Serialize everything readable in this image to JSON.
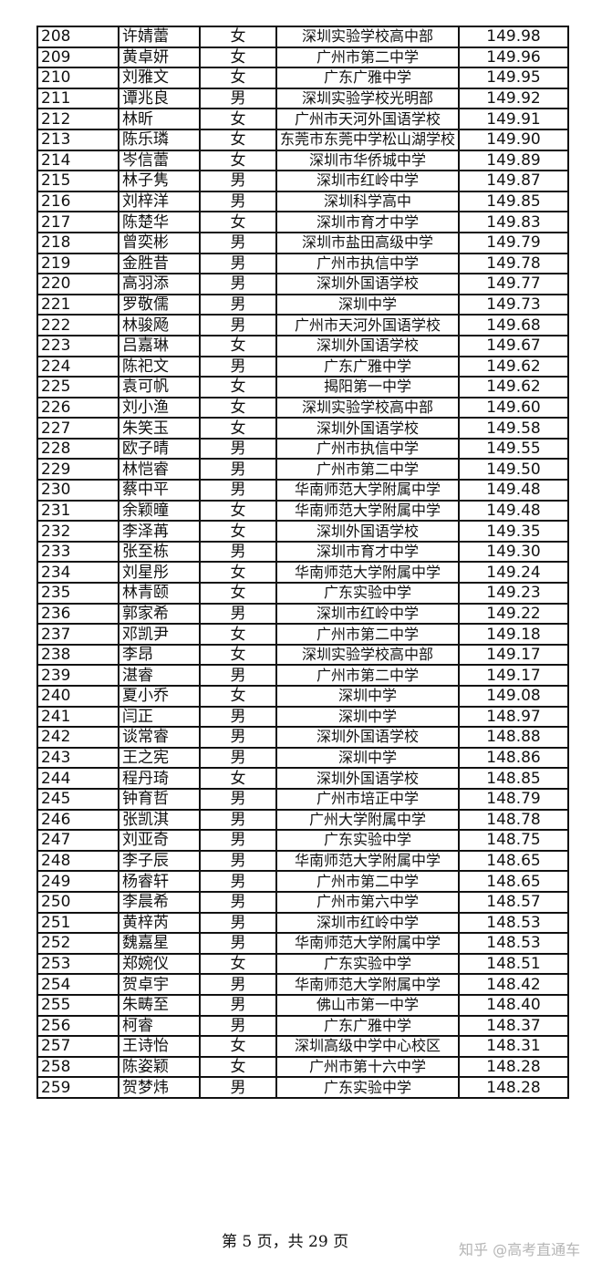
{
  "table": {
    "rows": [
      [
        "208",
        "许婧蕾",
        "女",
        "深圳实验学校高中部",
        "149.98"
      ],
      [
        "209",
        "黄卓妍",
        "女",
        "广州市第二中学",
        "149.96"
      ],
      [
        "210",
        "刘雅文",
        "女",
        "广东广雅中学",
        "149.95"
      ],
      [
        "211",
        "谭兆良",
        "男",
        "深圳实验学校光明部",
        "149.92"
      ],
      [
        "212",
        "林昕",
        "女",
        "广州市天河外国语学校",
        "149.91"
      ],
      [
        "213",
        "陈乐璘",
        "女",
        "东莞市东莞中学松山湖学校",
        "149.90"
      ],
      [
        "214",
        "岑信蕾",
        "女",
        "深圳市华侨城中学",
        "149.89"
      ],
      [
        "215",
        "林子隽",
        "男",
        "深圳市红岭中学",
        "149.87"
      ],
      [
        "216",
        "刘梓洋",
        "男",
        "深圳科学高中",
        "149.85"
      ],
      [
        "217",
        "陈楚华",
        "女",
        "深圳市育才中学",
        "149.83"
      ],
      [
        "218",
        "曾奕彬",
        "男",
        "深圳市盐田高级中学",
        "149.79"
      ],
      [
        "219",
        "金胜昔",
        "男",
        "广州市执信中学",
        "149.78"
      ],
      [
        "220",
        "高羽添",
        "男",
        "深圳外国语学校",
        "149.77"
      ],
      [
        "221",
        "罗敬儒",
        "男",
        "深圳中学",
        "149.73"
      ],
      [
        "222",
        "林骏飏",
        "男",
        "广州市天河外国语学校",
        "149.68"
      ],
      [
        "223",
        "吕嘉琳",
        "女",
        "深圳外国语学校",
        "149.67"
      ],
      [
        "224",
        "陈祀文",
        "男",
        "广东广雅中学",
        "149.62"
      ],
      [
        "225",
        "袁可帆",
        "女",
        "揭阳第一中学",
        "149.62"
      ],
      [
        "226",
        "刘小渔",
        "女",
        "深圳实验学校高中部",
        "149.60"
      ],
      [
        "227",
        "朱笑玉",
        "女",
        "深圳外国语学校",
        "149.58"
      ],
      [
        "228",
        "欧子晴",
        "男",
        "广州市执信中学",
        "149.55"
      ],
      [
        "229",
        "林恺睿",
        "男",
        "广州市第二中学",
        "149.50"
      ],
      [
        "230",
        "蔡中平",
        "男",
        "华南师范大学附属中学",
        "149.48"
      ],
      [
        "231",
        "余颖曈",
        "女",
        "华南师范大学附属中学",
        "149.48"
      ],
      [
        "232",
        "李泽苒",
        "女",
        "深圳外国语学校",
        "149.35"
      ],
      [
        "233",
        "张至栋",
        "男",
        "深圳市育才中学",
        "149.30"
      ],
      [
        "234",
        "刘星彤",
        "女",
        "华南师范大学附属中学",
        "149.24"
      ],
      [
        "235",
        "林青颐",
        "女",
        "广东实验中学",
        "149.23"
      ],
      [
        "236",
        "郭家希",
        "男",
        "深圳市红岭中学",
        "149.22"
      ],
      [
        "237",
        "邓凯尹",
        "女",
        "广州市第二中学",
        "149.18"
      ],
      [
        "238",
        "李昂",
        "女",
        "深圳实验学校高中部",
        "149.17"
      ],
      [
        "239",
        "湛睿",
        "男",
        "广州市第二中学",
        "149.17"
      ],
      [
        "240",
        "夏小乔",
        "女",
        "深圳中学",
        "149.08"
      ],
      [
        "241",
        "闫正",
        "男",
        "深圳中学",
        "148.97"
      ],
      [
        "242",
        "谈常睿",
        "男",
        "深圳外国语学校",
        "148.88"
      ],
      [
        "243",
        "王之宪",
        "男",
        "深圳中学",
        "148.86"
      ],
      [
        "244",
        "程丹琦",
        "女",
        "深圳外国语学校",
        "148.85"
      ],
      [
        "245",
        "钟育哲",
        "男",
        "广州市培正中学",
        "148.79"
      ],
      [
        "246",
        "张凯淇",
        "男",
        "广州大学附属中学",
        "148.78"
      ],
      [
        "247",
        "刘亚奇",
        "男",
        "广东实验中学",
        "148.75"
      ],
      [
        "248",
        "李子辰",
        "男",
        "华南师范大学附属中学",
        "148.65"
      ],
      [
        "249",
        "杨睿轩",
        "男",
        "广州市第二中学",
        "148.65"
      ],
      [
        "250",
        "李晨希",
        "男",
        "广州市第六中学",
        "148.57"
      ],
      [
        "251",
        "黄梓芮",
        "男",
        "深圳市红岭中学",
        "148.53"
      ],
      [
        "252",
        "魏嘉星",
        "男",
        "华南师范大学附属中学",
        "148.53"
      ],
      [
        "253",
        "郑婉仪",
        "女",
        "广东实验中学",
        "148.51"
      ],
      [
        "254",
        "贺卓宇",
        "男",
        "华南师范大学附属中学",
        "148.42"
      ],
      [
        "255",
        "朱畴至",
        "男",
        "佛山市第一中学",
        "148.40"
      ],
      [
        "256",
        "柯睿",
        "男",
        "广东广雅中学",
        "148.37"
      ],
      [
        "257",
        "王诗怡",
        "女",
        "深圳高级中学中心校区",
        "148.31"
      ],
      [
        "258",
        "陈姿颖",
        "女",
        "广州市第十六中学",
        "148.28"
      ],
      [
        "259",
        "贺梦炜",
        "男",
        "广东实验中学",
        "148.28"
      ]
    ]
  },
  "footer": {
    "page_info": "第 5 页，共 29 页",
    "watermark": "知乎 @高考直通车"
  }
}
